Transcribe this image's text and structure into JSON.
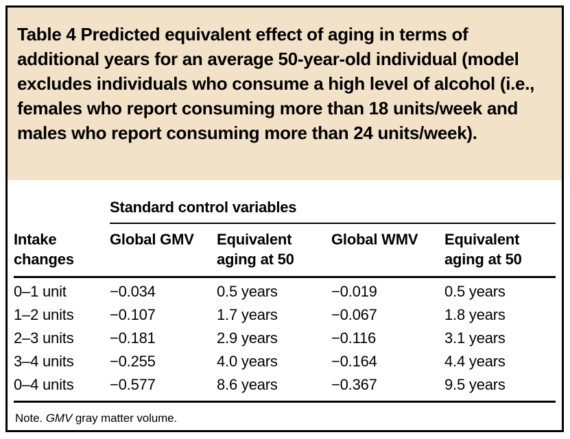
{
  "colors": {
    "title_background": "#f2e3c8",
    "text": "#000000",
    "frame_border": "#000000",
    "page_background": "#ffffff"
  },
  "title": "Table 4 Predicted equivalent effect of aging in terms of additional years for an average 50-year-old individual (model excludes individuals who consume a high level of alcohol (i.e., females who report consuming more than 18 units/week and males who report consuming more than 24 units/week).",
  "spanner": "Standard control variables",
  "columns": [
    {
      "line1": "Intake",
      "line2": "changes"
    },
    {
      "line1": "Global GMV",
      "line2": ""
    },
    {
      "line1": "Equivalent",
      "line2": "aging at 50"
    },
    {
      "line1": "Global WMV",
      "line2": ""
    },
    {
      "line1": "Equivalent",
      "line2": "aging at 50"
    }
  ],
  "rows": [
    [
      "0–1 unit",
      "−0.034",
      "0.5 years",
      "−0.019",
      "0.5 years"
    ],
    [
      "1–2 units",
      "−0.107",
      "1.7 years",
      "−0.067",
      "1.8 years"
    ],
    [
      "2–3 units",
      "−0.181",
      "2.9 years",
      "−0.116",
      "3.1 years"
    ],
    [
      "3–4 units",
      "−0.255",
      "4.0 years",
      "−0.164",
      "4.4 years"
    ],
    [
      "0–4 units",
      "−0.577",
      "8.6 years",
      "−0.367",
      "9.5 years"
    ]
  ],
  "note": {
    "prefix": "Note. ",
    "abbr": "GMV",
    "definition": " gray matter volume."
  },
  "chart_data": {
    "type": "table",
    "title": "Table 4 Predicted equivalent effect of aging in terms of additional years for an average 50-year-old individual",
    "spanner": "Standard control variables",
    "columns": [
      "Intake changes",
      "Global GMV",
      "Equivalent aging at 50",
      "Global WMV",
      "Equivalent aging at 50"
    ],
    "rows": [
      [
        "0–1 unit",
        "−0.034",
        "0.5 years",
        "−0.019",
        "0.5 years"
      ],
      [
        "1–2 units",
        "−0.107",
        "1.7 years",
        "−0.067",
        "1.8 years"
      ],
      [
        "2–3 units",
        "−0.181",
        "2.9 years",
        "−0.116",
        "3.1 years"
      ],
      [
        "3–4 units",
        "−0.255",
        "4.0 years",
        "−0.164",
        "4.4 years"
      ],
      [
        "0–4 units",
        "−0.577",
        "8.6 years",
        "−0.367",
        "9.5 years"
      ]
    ],
    "note": "Note. GMV gray matter volume."
  }
}
